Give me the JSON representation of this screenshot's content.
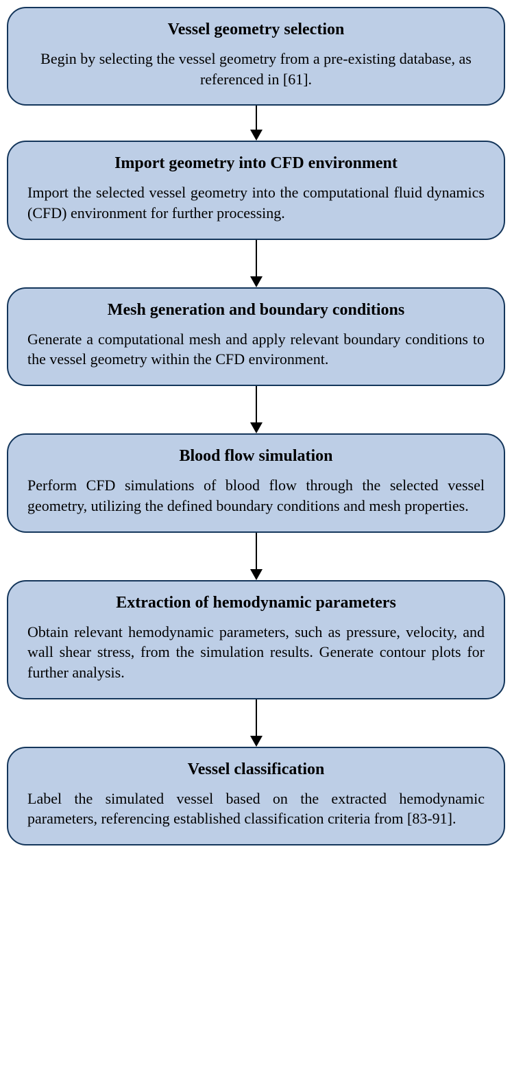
{
  "flowchart": {
    "type": "flowchart",
    "background_color": "#ffffff",
    "node_fill": "#bdcee6",
    "node_border_color": "#14365b",
    "node_border_width": 2,
    "node_border_radius": 28,
    "arrow_color": "#000000",
    "arrow_shaft_width": 2,
    "arrow_head_size": 16,
    "title_fontsize": 24,
    "title_fontweight": "bold",
    "body_fontsize": 22,
    "font_family": "Times New Roman",
    "text_color": "#000000",
    "nodes": [
      {
        "id": "n1",
        "title": "Vessel geometry selection",
        "body": "Begin by selecting the vessel geometry from a pre-existing database, as referenced in [61].",
        "body_align": "center",
        "arrow_after_length": 36
      },
      {
        "id": "n2",
        "title": "Import geometry into CFD environment",
        "body": "Import the selected vessel geometry into the computational fluid dynamics (CFD) environment for further processing.",
        "body_align": "justify",
        "arrow_after_length": 54
      },
      {
        "id": "n3",
        "title": "Mesh generation and boundary conditions",
        "body": "Generate a computational mesh and apply relevant boundary conditions to the vessel geometry within the CFD environment.",
        "body_align": "justify",
        "arrow_after_length": 54
      },
      {
        "id": "n4",
        "title": "Blood flow simulation",
        "body": "Perform CFD simulations of blood flow through the selected vessel geometry, utilizing the defined boundary conditions and mesh properties.",
        "body_align": "justify",
        "arrow_after_length": 54
      },
      {
        "id": "n5",
        "title": "Extraction of hemodynamic parameters",
        "body": "Obtain relevant hemodynamic parameters, such as pressure, velocity, and wall shear stress, from the simulation results. Generate contour plots for further analysis.",
        "body_align": "justify",
        "arrow_after_length": 54
      },
      {
        "id": "n6",
        "title": "Vessel classification",
        "body": "Label the simulated vessel based on the extracted hemodynamic parameters, referencing established classification criteria from [83-91].",
        "body_align": "justify",
        "arrow_after_length": 0
      }
    ]
  }
}
